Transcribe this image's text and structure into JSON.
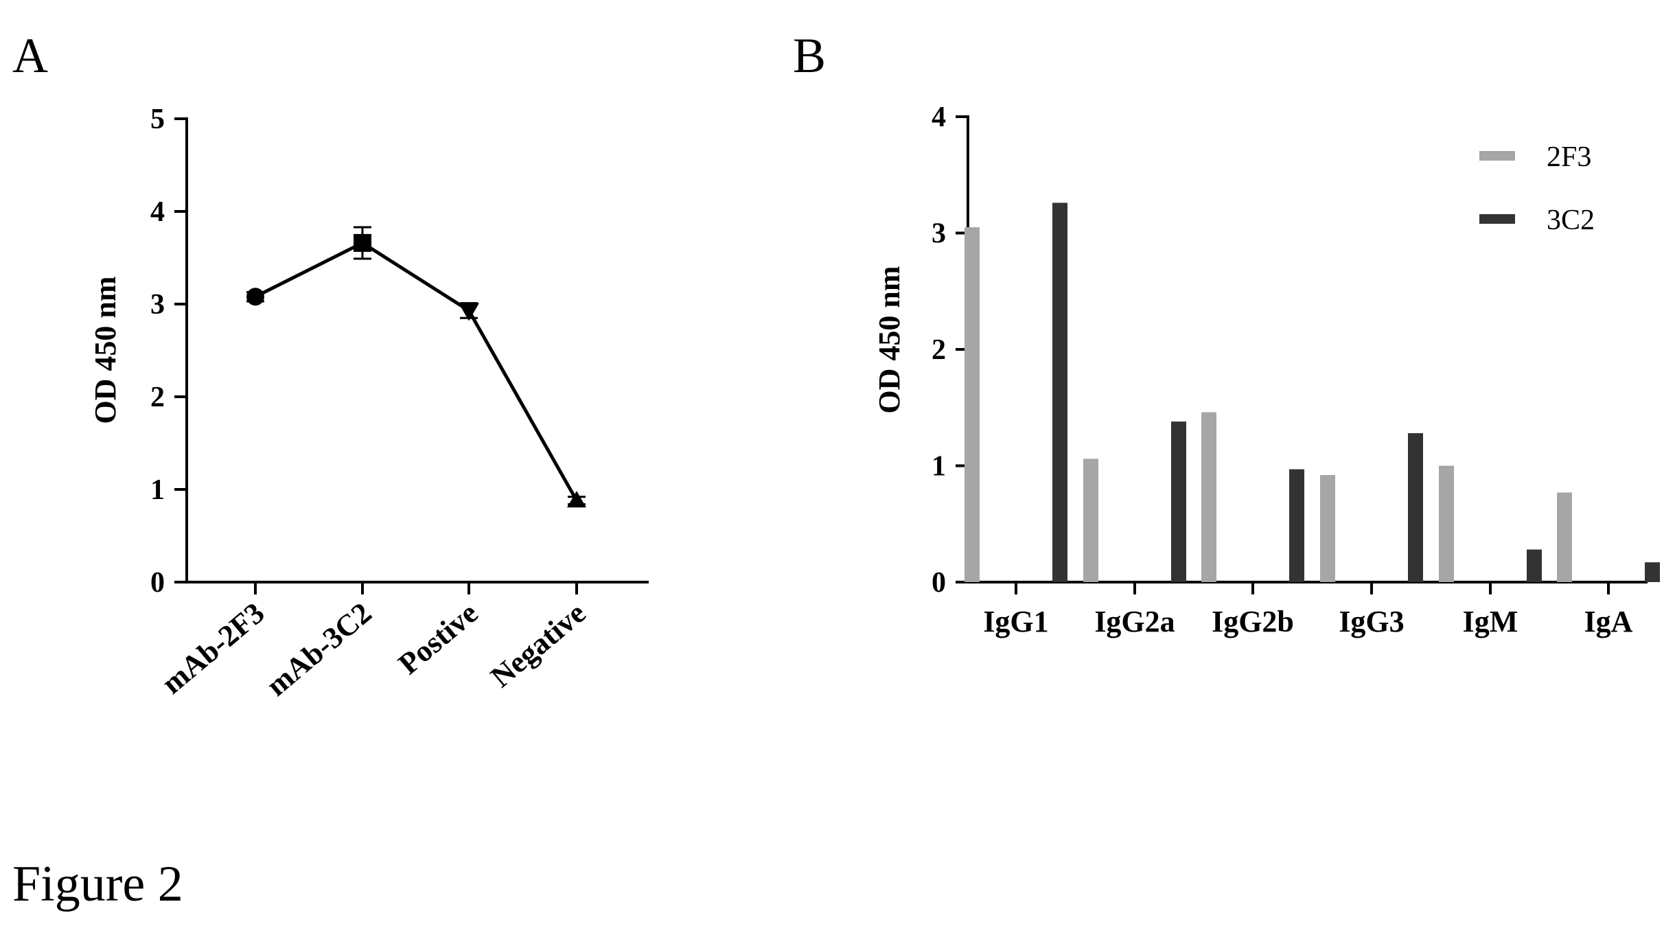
{
  "figure": {
    "caption": "Figure 2"
  },
  "chart_data": [
    {
      "panel": "A",
      "type": "line",
      "ylabel": "OD 450 nm",
      "ylim": [
        0,
        5
      ],
      "yticks": [
        "0",
        "1",
        "2",
        "3",
        "4",
        "5"
      ],
      "categories": [
        "mAb-2F3",
        "mAb-3C2",
        "Postive",
        "Negative"
      ],
      "series": [
        {
          "values": [
            3.08,
            3.66,
            2.93,
            0.88
          ],
          "errors": [
            0.05,
            0.17,
            0.08,
            0.04
          ],
          "markers": [
            "circle",
            "square",
            "triangle-down",
            "triangle-up"
          ],
          "color": "#000000"
        }
      ]
    },
    {
      "panel": "B",
      "type": "bar",
      "ylabel": "OD 450 nm",
      "ylim": [
        0,
        4
      ],
      "yticks": [
        "0",
        "1",
        "2",
        "3",
        "4"
      ],
      "categories": [
        "IgG1",
        "IgG2a",
        "IgG2b",
        "IgG3",
        "IgM",
        "IgA"
      ],
      "legend_position": "top-right",
      "series": [
        {
          "name": "2F3",
          "color": "#a6a6a6",
          "values": [
            3.05,
            1.06,
            1.46,
            0.92,
            1.0,
            0.77
          ]
        },
        {
          "name": "3C2",
          "color": "#333333",
          "values": [
            3.26,
            1.38,
            0.97,
            1.28,
            0.28,
            0.17
          ]
        }
      ]
    }
  ]
}
